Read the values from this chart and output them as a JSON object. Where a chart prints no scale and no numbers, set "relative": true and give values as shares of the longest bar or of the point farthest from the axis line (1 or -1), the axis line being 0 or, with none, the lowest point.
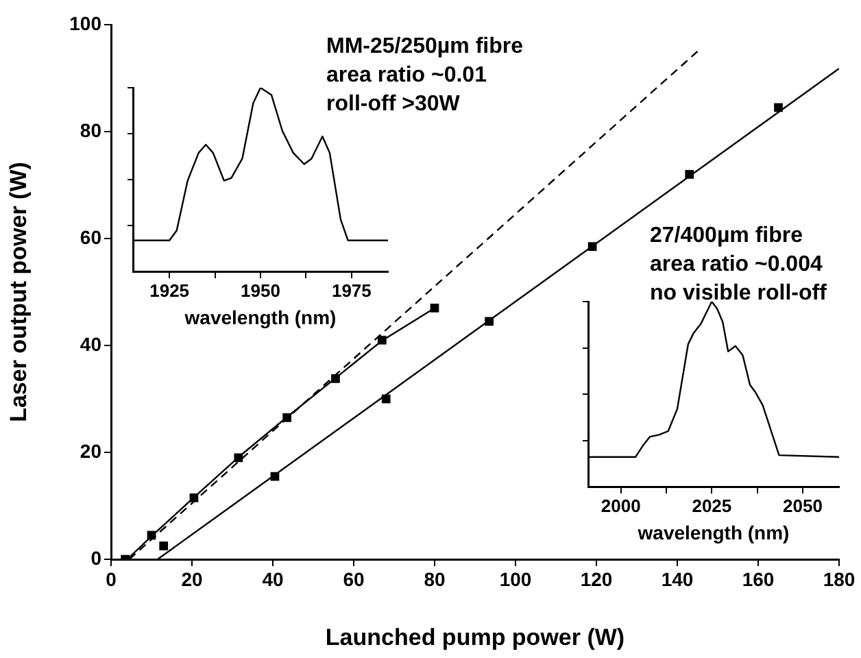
{
  "chart_data": [
    {
      "type": "scatter",
      "xlabel": "Launched pump power (W)",
      "ylabel": "Laser output power (W)",
      "xlim": [
        0,
        180
      ],
      "ylim": [
        0,
        100
      ],
      "xticks": [
        0,
        20,
        40,
        60,
        80,
        100,
        120,
        140,
        160,
        180
      ],
      "yticks": [
        0,
        20,
        40,
        60,
        80,
        100
      ],
      "grid": false,
      "legend": false,
      "annotations": [
        "MM-25/250µm fibre",
        "area ratio ~0.01",
        "roll-off >30W",
        "27/400µm fibre",
        "area ratio ~0.004",
        "no visible roll-off"
      ],
      "series": [
        {
          "color": "#000000",
          "marker": "square",
          "x": [
            3.5,
            10,
            20.5,
            31.5,
            43.5,
            55.5,
            67,
            80
          ],
          "values": [
            0,
            4.5,
            11.5,
            19,
            26.5,
            33.8,
            41,
            47
          ]
        },
        {
          "color": "#000000",
          "marker": "square",
          "x": [
            13,
            40.5,
            68,
            93.5,
            119,
            143,
            165
          ],
          "values": [
            2.5,
            15.5,
            30,
            44.5,
            58.5,
            72,
            84.5
          ]
        },
        {
          "type": "line",
          "color": "#000000",
          "marker": "none",
          "line_style": "solid",
          "x": [
            4,
            10,
            20.5,
            31.5,
            43.5,
            55.5,
            67,
            80
          ],
          "values": [
            0,
            4.3,
            11.6,
            19.1,
            26.6,
            33.9,
            40.9,
            47
          ]
        },
        {
          "type": "line",
          "color": "#000000",
          "marker": "none",
          "line_style": "dashed",
          "x": [
            4.5,
            145
          ],
          "values": [
            0,
            95
          ]
        },
        {
          "type": "line",
          "color": "#000000",
          "marker": "none",
          "line_style": "solid",
          "x": [
            11.5,
            180
          ],
          "values": [
            0,
            91.8
          ]
        }
      ]
    },
    {
      "type": "line",
      "relative": true,
      "xlabel": "wavelength (nm)",
      "xlim": [
        1915,
        1985
      ],
      "xticks": [
        1925,
        {
          "value": 1937.5,
          "label": null
        },
        1950,
        {
          "value": 1962.5,
          "label": null
        },
        1975
      ],
      "tick_labels": "x",
      "grid": false,
      "legend": false,
      "series": [
        {
          "color": "#000000",
          "marker": "none",
          "line_style": "solid",
          "x": [
            1915,
            1925,
            1927,
            1930,
            1933,
            1935,
            1937,
            1940,
            1942,
            1945,
            1948,
            1950,
            1953,
            1956,
            1959,
            1962,
            1964,
            1967,
            1969,
            1972,
            1974,
            1985
          ],
          "values": [
            0.169,
            0.169,
            0.223,
            0.494,
            0.645,
            0.69,
            0.645,
            0.494,
            0.509,
            0.614,
            0.916,
            1,
            0.961,
            0.765,
            0.645,
            0.584,
            0.614,
            0.735,
            0.645,
            0.283,
            0.169,
            0.169
          ]
        }
      ]
    },
    {
      "type": "line",
      "relative": true,
      "xlabel": "wavelength (nm)",
      "xlim": [
        1991,
        2060
      ],
      "xticks": [
        2000,
        {
          "value": 2012.5,
          "label": null
        },
        2025,
        {
          "value": 2037.5,
          "label": null
        },
        2050
      ],
      "tick_labels": "x",
      "grid": false,
      "legend": false,
      "series": [
        {
          "color": "#000000",
          "marker": "none",
          "line_style": "solid",
          "x": [
            1991,
            1996,
            2004,
            2006,
            2008,
            2010.5,
            2013,
            2015.5,
            2018.5,
            2020,
            2022,
            2025,
            2026.5,
            2028,
            2029.5,
            2031.5,
            2033.5,
            2035.5,
            2037,
            2039,
            2041,
            2043.5,
            2060
          ],
          "values": [
            0.16,
            0.16,
            0.16,
            0.22,
            0.27,
            0.28,
            0.3,
            0.42,
            0.77,
            0.83,
            0.88,
            1,
            0.96,
            0.89,
            0.73,
            0.76,
            0.71,
            0.55,
            0.51,
            0.44,
            0.32,
            0.17,
            0.16
          ]
        }
      ]
    }
  ]
}
